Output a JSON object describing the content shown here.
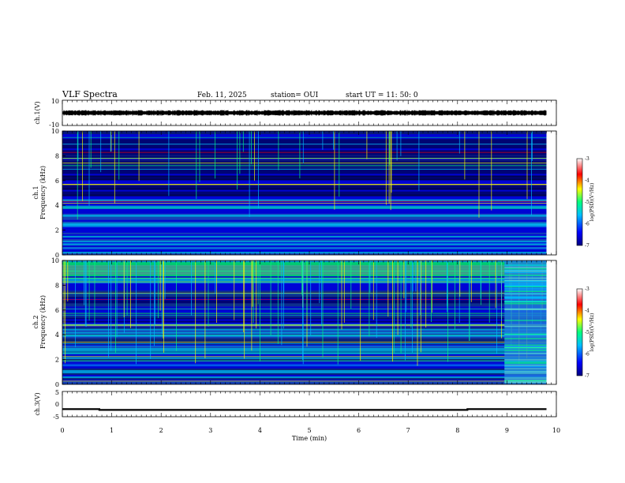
{
  "header": {
    "title": "VLF Spectra",
    "date": "Feb. 11, 2025",
    "station": "station= OUI",
    "start": "start  UT  =    11: 50: 0"
  },
  "colors": {
    "colormap": [
      "#000080",
      "#0000ff",
      "#00bfff",
      "#00ff7f",
      "#ffff00",
      "#ff0000",
      "#ffffff"
    ]
  },
  "chart_data": [
    {
      "type": "line",
      "panel": "ch.1 waveform",
      "ylabel": "ch.1(V)",
      "ylim": [
        -10,
        10
      ],
      "yticks": [
        "10",
        "-10"
      ],
      "x": [
        0,
        9.8
      ],
      "band": [
        -2,
        2
      ]
    },
    {
      "type": "heatmap",
      "panel": "ch.1 spectrogram",
      "ylabel_top": "ch.1",
      "ylabel": "Frequency (kHz)",
      "ylim": [
        0,
        10
      ],
      "yticks": [
        "0",
        "2",
        "4",
        "6",
        "8",
        "10"
      ],
      "xlim": [
        0,
        10
      ],
      "data_end_x": 9.8,
      "colorbar": {
        "label": "log(PSD)(V²/Hz)",
        "range": [
          -7,
          -3
        ],
        "ticks": [
          "-3",
          "-4",
          "-5",
          "-6",
          "-7"
        ]
      }
    },
    {
      "type": "heatmap",
      "panel": "ch.2 spectrogram",
      "ylabel_top": "ch.2",
      "ylabel": "Frequency (kHz)",
      "ylim": [
        0,
        10
      ],
      "yticks": [
        "0",
        "2",
        "4",
        "6",
        "8",
        "10"
      ],
      "xlim": [
        0,
        10
      ],
      "data_end_x": 9.8,
      "regime_change_x": 8.95,
      "colorbar": {
        "label": "log(PSD)(V²/Hz)",
        "range": [
          -7,
          -3
        ],
        "ticks": [
          "-3",
          "-4",
          "-5",
          "-6",
          "-7"
        ]
      }
    },
    {
      "type": "line",
      "panel": "ch.3 signal",
      "ylabel": "ch.3(V)",
      "ylim": [
        -5,
        5
      ],
      "yticks": [
        "5",
        "0",
        "-5"
      ],
      "x": [
        0,
        0.75,
        0.75,
        8.2,
        8.2,
        9.8
      ],
      "y": [
        -2,
        -2,
        -2.3,
        -2.3,
        -2,
        -2
      ],
      "xlabel": "Time (min)",
      "xlim": [
        0,
        10
      ],
      "xticks": [
        "0",
        "1",
        "2",
        "3",
        "4",
        "5",
        "6",
        "7",
        "8",
        "9",
        "10"
      ]
    }
  ]
}
